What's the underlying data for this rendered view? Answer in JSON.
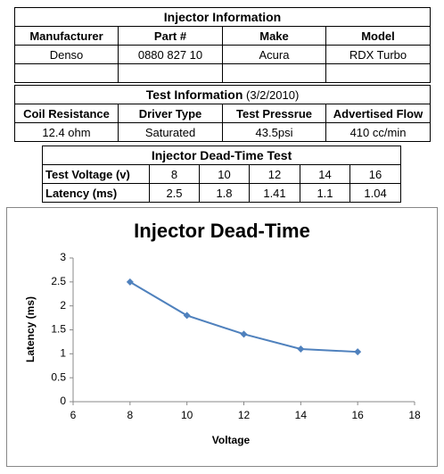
{
  "injector_info": {
    "title": "Injector Information",
    "headers": [
      "Manufacturer",
      "Part #",
      "Make",
      "Model"
    ],
    "rows": [
      [
        "Denso",
        "0880 827 10",
        "Acura",
        "RDX Turbo"
      ]
    ]
  },
  "test_info": {
    "title": "Test Information",
    "date": "(3/2/2010)",
    "headers": [
      "Coil Resistance",
      "Driver Type",
      "Test Pressrue",
      "Advertised Flow"
    ],
    "rows": [
      [
        "12.4 ohm",
        "Saturated",
        "43.5psi",
        "410 cc/min"
      ]
    ]
  },
  "dead_time_test": {
    "title": "Injector Dead-Time Test",
    "rows": [
      [
        "Test Voltage (v)",
        "8",
        "10",
        "12",
        "14",
        "16"
      ],
      [
        "Latency (ms)",
        "2.5",
        "1.8",
        "1.41",
        "1.1",
        "1.04"
      ]
    ]
  },
  "chart_data": {
    "type": "line",
    "title": "Injector Dead-Time",
    "x_label": "Voltage",
    "y_label": "Latency (ms)",
    "x": [
      8,
      10,
      12,
      14,
      16
    ],
    "series": [
      {
        "color": "#4f81bd",
        "values": [
          2.5,
          1.8,
          1.41,
          1.1,
          1.04
        ]
      }
    ],
    "xlim": [
      6,
      18
    ],
    "xticks": [
      6,
      8,
      10,
      12,
      14,
      16,
      18
    ],
    "ylim": [
      0,
      3
    ],
    "yticks": [
      0,
      0.5,
      1,
      1.5,
      2,
      2.5,
      3
    ]
  }
}
